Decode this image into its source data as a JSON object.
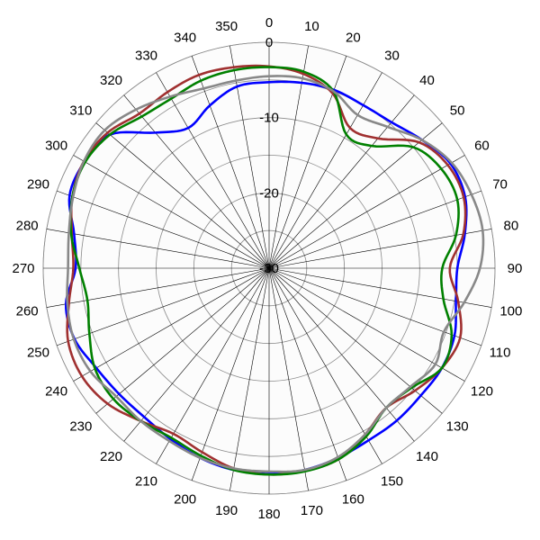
{
  "chart_data": {
    "type": "polar-line",
    "title": "",
    "angle_unit": "deg",
    "angle_zero": "top",
    "angle_direction": "clockwise",
    "angle_ticks": [
      "0",
      "10",
      "20",
      "30",
      "40",
      "50",
      "60",
      "70",
      "80",
      "90",
      "100",
      "110",
      "120",
      "130",
      "140",
      "150",
      "160",
      "170",
      "180",
      "190",
      "200",
      "210",
      "220",
      "230",
      "240",
      "250",
      "260",
      "270",
      "280",
      "290",
      "300",
      "310",
      "320",
      "330",
      "340",
      "350"
    ],
    "radial_range": [
      -30,
      0
    ],
    "radial_ticks": [
      "0",
      "-10",
      "-20",
      "-30"
    ],
    "grid": true,
    "background_color": "#fcfcfc",
    "series": [
      {
        "color": "#0000ff",
        "theta": [
          0,
          10,
          20,
          30,
          40,
          50,
          60,
          70,
          80,
          90,
          100,
          110,
          120,
          130,
          140,
          150,
          160,
          170,
          180,
          190,
          200,
          210,
          220,
          230,
          240,
          250,
          260,
          270,
          280,
          290,
          300,
          310,
          320,
          330,
          340,
          350,
          360
        ],
        "r": [
          -5.3,
          -5.0,
          -4.8,
          -5.0,
          -4.7,
          -3.5,
          -2.2,
          -2.3,
          -3.6,
          -5.0,
          -4.8,
          -3.8,
          -3.5,
          -3.7,
          -3.6,
          -3.6,
          -3.2,
          -2.8,
          -2.7,
          -2.8,
          -3.2,
          -3.8,
          -4.2,
          -4.0,
          -3.5,
          -2.5,
          -2.6,
          -4.3,
          -3.7,
          -1.8,
          -1.7,
          -2.4,
          -6.5,
          -8.5,
          -7.0,
          -5.5,
          -5.3
        ]
      },
      {
        "color": "#a03030",
        "theta": [
          0,
          10,
          20,
          30,
          40,
          50,
          60,
          70,
          80,
          90,
          100,
          110,
          120,
          130,
          140,
          150,
          160,
          170,
          180,
          190,
          200,
          210,
          220,
          230,
          240,
          250,
          260,
          270,
          280,
          290,
          300,
          310,
          320,
          330,
          340,
          350,
          360
        ],
        "r": [
          -3.2,
          -3.8,
          -5.3,
          -8.5,
          -7.5,
          -4.0,
          -2.6,
          -2.5,
          -3.8,
          -6.0,
          -4.5,
          -3.0,
          -3.5,
          -4.7,
          -5.8,
          -4.5,
          -3.0,
          -2.7,
          -2.6,
          -3.0,
          -4.0,
          -4.6,
          -3.5,
          -2.0,
          -1.3,
          -1.6,
          -3.0,
          -4.0,
          -3.4,
          -2.2,
          -1.6,
          -2.0,
          -3.2,
          -3.0,
          -2.7,
          -2.9,
          -3.2
        ]
      },
      {
        "color": "#008000",
        "theta": [
          0,
          10,
          20,
          30,
          40,
          50,
          60,
          70,
          80,
          90,
          100,
          110,
          120,
          130,
          140,
          150,
          160,
          170,
          180,
          190,
          200,
          210,
          220,
          230,
          240,
          250,
          260,
          270,
          280,
          290,
          300,
          310,
          320,
          330,
          340,
          350,
          360
        ],
        "r": [
          -3.3,
          -3.5,
          -5.0,
          -9.5,
          -8.8,
          -5.0,
          -3.6,
          -3.4,
          -4.8,
          -7.0,
          -6.5,
          -4.2,
          -3.5,
          -5.3,
          -5.8,
          -4.2,
          -3.0,
          -2.6,
          -2.6,
          -2.8,
          -3.5,
          -4.0,
          -3.5,
          -3.0,
          -3.3,
          -4.6,
          -5.5,
          -4.8,
          -3.3,
          -2.2,
          -1.8,
          -2.4,
          -3.7,
          -4.0,
          -3.5,
          -3.3,
          -3.3
        ]
      },
      {
        "color": "#888888",
        "theta": [
          0,
          10,
          20,
          30,
          40,
          50,
          60,
          70,
          80,
          90,
          100,
          110,
          120,
          130,
          140,
          150,
          160,
          170,
          180,
          190,
          200,
          210,
          220,
          230,
          240,
          250,
          260,
          270,
          280,
          290,
          300,
          310,
          320,
          330,
          340,
          350,
          360
        ],
        "r": [
          -4.5,
          -4.4,
          -5.0,
          -6.5,
          -5.5,
          -3.5,
          -2.0,
          -1.4,
          -1.2,
          -2.0,
          -3.7,
          -5.3,
          -4.5,
          -5.5,
          -5.8,
          -4.5,
          -3.3,
          -2.8,
          -3.0,
          -3.0,
          -3.2,
          -3.5,
          -3.5,
          -3.5,
          -2.6,
          -2.4,
          -2.8,
          -3.3,
          -3.0,
          -2.3,
          -1.6,
          -1.5,
          -2.5,
          -3.7,
          -4.6,
          -4.7,
          -4.5
        ]
      }
    ]
  }
}
